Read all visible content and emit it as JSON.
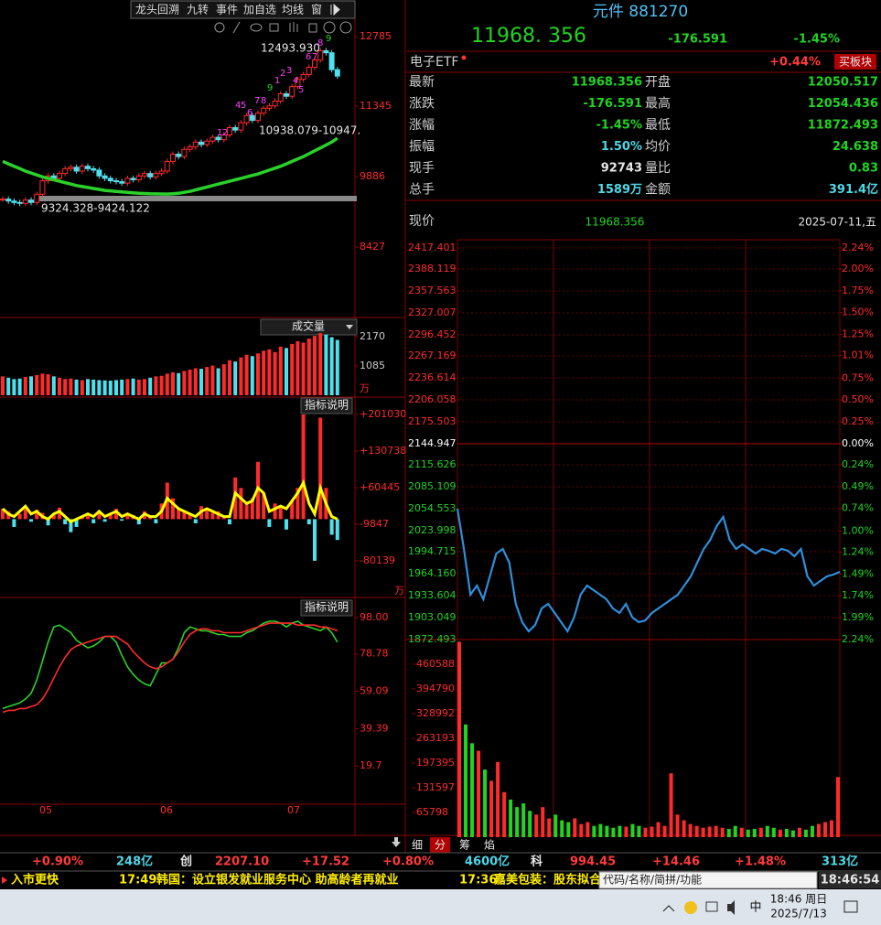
{
  "toolbar": [
    "龙头回溯",
    "九转",
    "事件",
    "加自选",
    "均线",
    "窗"
  ],
  "chart_data": [
    {
      "type": "kline",
      "values": [
        9420,
        9380,
        9350,
        9330,
        9400,
        9350,
        9520,
        9800,
        9900,
        9850,
        9950,
        10050,
        10080,
        10000,
        10100,
        10050,
        10020,
        9900,
        9850,
        9800,
        9780,
        9750,
        9850,
        9820,
        9900,
        9950,
        9880,
        9950,
        10000,
        10200,
        10350,
        10300,
        10450,
        10500,
        10600,
        10550,
        10620,
        10700,
        10650,
        10750,
        10900,
        10850,
        11000,
        11150,
        11050,
        11200,
        11300,
        11350,
        11450,
        11600,
        11550,
        11750,
        11900,
        12000,
        12150,
        12300,
        12493,
        12450,
        12100,
        11968
      ],
      "ma_values": [
        10200,
        10150,
        10100,
        10050,
        10000,
        9960,
        9920,
        9880,
        9850,
        9820,
        9790,
        9760,
        9730,
        9700,
        9680,
        9660,
        9640,
        9620,
        9600,
        9590,
        9580,
        9570,
        9560,
        9550,
        9540,
        9535,
        9530,
        9528,
        9526,
        9525,
        9530,
        9540,
        9560,
        9580,
        9610,
        9640,
        9670,
        9700,
        9730,
        9760,
        9790,
        9820,
        9850,
        9880,
        9910,
        9940,
        9980,
        10020,
        10060,
        10100,
        10150,
        10200,
        10250,
        10300,
        10360,
        10420,
        10480,
        10540,
        10600,
        10680
      ],
      "ma_color": "#2bd12b",
      "ylim": [
        7006,
        13164
      ],
      "yticks": [
        12785,
        11345,
        9886,
        8427
      ],
      "annotations": [
        "12493.930",
        "10938.079-10947.",
        "9324.328-9424.122"
      ],
      "td_labels": [
        "1",
        "2",
        "4",
        "5",
        "6",
        "7",
        "8",
        "9",
        "1",
        "2",
        "3",
        "4",
        "5",
        "6",
        "7",
        "8",
        "9"
      ],
      "x_labels": [
        "05",
        "06",
        "07"
      ]
    },
    {
      "type": "bar",
      "title": "成交量",
      "values": [
        700,
        650,
        600,
        620,
        680,
        700,
        750,
        800,
        780,
        700,
        650,
        600,
        620,
        580,
        560,
        600,
        580,
        560,
        550,
        540,
        560,
        580,
        600,
        620,
        580,
        600,
        650,
        700,
        720,
        800,
        850,
        820,
        900,
        950,
        1000,
        980,
        1050,
        1100,
        1000,
        1150,
        1300,
        1250,
        1400,
        1500,
        1450,
        1550,
        1650,
        1700,
        1600,
        1800,
        1750,
        1900,
        2000,
        1950,
        2100,
        2200,
        2300,
        2250,
        2150,
        2050
      ],
      "ylim": [
        0,
        2848
      ],
      "yticks": [
        2170,
        1085
      ],
      "unit": "万"
    },
    {
      "type": "bar_line",
      "title": "指标说明",
      "values": [
        20000,
        15000,
        -15000,
        10000,
        25000,
        -5000,
        18000,
        12000,
        -12000,
        8000,
        22000,
        -10000,
        -25000,
        -15000,
        5000,
        10000,
        -8000,
        15000,
        -5000,
        12000,
        20000,
        -3000,
        10000,
        8000,
        -10000,
        15000,
        5000,
        -8000,
        30000,
        70000,
        40000,
        20000,
        15000,
        10000,
        -8000,
        25000,
        20000,
        12000,
        15000,
        5000,
        -10000,
        80000,
        60000,
        30000,
        40000,
        110000,
        50000,
        -15000,
        30000,
        25000,
        -20000,
        35000,
        60000,
        201030,
        -10000,
        -80000,
        195000,
        60000,
        -30000,
        -40000
      ],
      "line_values": [
        20000,
        10000,
        5000,
        15000,
        25000,
        10000,
        15000,
        5000,
        0,
        10000,
        15000,
        5000,
        -5000,
        0,
        5000,
        10000,
        5000,
        15000,
        5000,
        10000,
        15000,
        5000,
        10000,
        5000,
        0,
        10000,
        5000,
        5000,
        15000,
        40000,
        30000,
        20000,
        15000,
        10000,
        5000,
        15000,
        20000,
        15000,
        10000,
        5000,
        5000,
        50000,
        40000,
        30000,
        35000,
        60000,
        50000,
        15000,
        20000,
        25000,
        20000,
        35000,
        50000,
        70000,
        30000,
        10000,
        60000,
        30000,
        5000,
        0
      ],
      "line_color": "#ffff00",
      "ylim": [
        -148674,
        232661
      ],
      "yticks": [
        {
          "value": 201030,
          "label": "+201030"
        },
        {
          "value": 130738,
          "label": "+130738"
        },
        {
          "value": 60445,
          "label": "+60445"
        },
        -9847,
        -80139
      ],
      "unit": "万"
    },
    {
      "type": "line",
      "title": "指标说明",
      "series": [
        {
          "color": "#2bd12b",
          "values": [
            50,
            51,
            52,
            53,
            55,
            58,
            65,
            75,
            85,
            93,
            94,
            92,
            90,
            86,
            84,
            82,
            83,
            85,
            88,
            88,
            85,
            78,
            72,
            68,
            65,
            63,
            62,
            68,
            74,
            74,
            76,
            82,
            90,
            93,
            92,
            91,
            91,
            90,
            89,
            89,
            88,
            88,
            88,
            90,
            91,
            93,
            95,
            96,
            96,
            95,
            93,
            95,
            96,
            94,
            93,
            92,
            91,
            93,
            90,
            85
          ]
        },
        {
          "color": "#ff2a2a",
          "values": [
            48,
            49,
            49,
            50,
            50,
            51,
            52,
            55,
            60,
            66,
            72,
            77,
            81,
            83,
            84,
            85,
            86,
            87,
            88,
            88,
            88,
            86,
            84,
            80,
            77,
            74,
            72,
            71,
            72,
            74,
            76,
            80,
            85,
            89,
            91,
            92,
            92,
            91,
            91,
            90,
            90,
            90,
            90,
            91,
            92,
            93,
            94,
            95,
            95,
            95,
            95,
            95,
            94,
            94,
            94,
            94,
            93,
            93,
            92,
            91
          ]
        }
      ],
      "ylim": [
        0,
        107.6
      ],
      "yticks": [
        {
          "value": 98,
          "label": "98.00"
        },
        78.78,
        59.09,
        39.39,
        19.7
      ]
    },
    {
      "type": "line",
      "color": "#2f8fdc",
      "values": [
        2054.5,
        1998.5,
        1934.9,
        1947.6,
        1928.5,
        1960.3,
        1992.2,
        1998.5,
        1979.4,
        1922.1,
        1896.7,
        1883.9,
        1892.8,
        1915.8,
        1922.1,
        1909.4,
        1896.7,
        1883.9,
        1903.0,
        1934.9,
        1947.6,
        1941.2,
        1934.9,
        1928.5,
        1915.8,
        1909.4,
        1922.1,
        1903.0,
        1896.7,
        1899.2,
        1909.4,
        1915.8,
        1922.1,
        1928.5,
        1934.9,
        1947.6,
        1960.3,
        1979.4,
        1998.5,
        2011.2,
        2030.3,
        2043.1,
        2011.2,
        1998.5,
        2004.9,
        1998.5,
        1992.2,
        1998.5,
        1996.0,
        1992.2,
        1998.5,
        1996.0,
        1988.3,
        1998.5,
        1960.3,
        1947.6,
        1954.0,
        1960.3,
        1962.9,
        1966.7
      ],
      "ylim": [
        1872.493,
        2417.401
      ],
      "grid": true,
      "yticks": [
        2417.401,
        2388.119,
        2357.563,
        2327.007,
        2296.452,
        2267.169,
        2236.614,
        2206.058,
        2175.503,
        2144.947,
        2115.626,
        2085.109,
        2054.553,
        2023.998,
        1994.715,
        {
          "value": 1964.16,
          "label": "1964.160"
        },
        1933.604,
        1903.049,
        1872.493
      ],
      "y2lim": [
        -2.24,
        2.24
      ],
      "y2ticks": [
        {
          "value": 2.24,
          "label": "2.24%"
        },
        {
          "value": 2.0,
          "label": "2.00%"
        },
        {
          "value": 1.75,
          "label": "1.75%"
        },
        {
          "value": 1.5,
          "label": "1.50%"
        },
        {
          "value": 1.25,
          "label": "1.25%"
        },
        {
          "value": 1.01,
          "label": "1.01%"
        },
        {
          "value": 0.75,
          "label": "0.75%"
        },
        {
          "value": 0.5,
          "label": "0.50%"
        },
        {
          "value": 0.25,
          "label": "0.25%"
        },
        {
          "value": 0,
          "label": "0.00%"
        },
        {
          "value": -0.24,
          "label": "0.24%"
        },
        {
          "value": -0.49,
          "label": "0.49%"
        },
        {
          "value": -0.74,
          "label": "0.74%"
        },
        {
          "value": -1.0,
          "label": "1.00%"
        },
        {
          "value": -1.24,
          "label": "1.24%"
        },
        {
          "value": -1.49,
          "label": "1.49%"
        },
        {
          "value": -1.74,
          "label": "1.74%"
        },
        {
          "value": -1.99,
          "label": "1.99%"
        },
        {
          "value": -2.24,
          "label": "2.24%"
        }
      ]
    },
    {
      "type": "bar",
      "values": [
        520000,
        300000,
        250000,
        230000,
        180000,
        150000,
        200000,
        120000,
        100000,
        80000,
        90000,
        70000,
        60000,
        80000,
        50000,
        60000,
        45000,
        40000,
        50000,
        35000,
        40000,
        30000,
        35000,
        30000,
        25000,
        30000,
        28000,
        35000,
        30000,
        25000,
        28000,
        40000,
        30000,
        170000,
        60000,
        45000,
        35000,
        30000,
        25000,
        28000,
        30000,
        25000,
        22000,
        30000,
        25000,
        20000,
        22000,
        25000,
        30000,
        25000,
        20000,
        22000,
        18000,
        25000,
        20000,
        30000,
        35000,
        40000,
        45000,
        160000
      ],
      "ylim": [
        0,
        526000
      ],
      "yticks": [
        460588,
        394790,
        328992,
        263193,
        197395,
        131597,
        65798
      ]
    }
  ],
  "quote": {
    "title": "元件 881270",
    "price": "11968. 356",
    "change": "-176.591",
    "pct": "-1.45%",
    "sector": "电子ETF",
    "sector_pct": "+0.44%",
    "button": "买板块",
    "rows": [
      [
        "最新",
        "11968.356",
        "开盘",
        "12050.517"
      ],
      [
        "涨跌",
        "-176.591",
        "最高",
        "12054.436"
      ],
      [
        "涨幅",
        "-1.45%",
        "最低",
        "11872.493"
      ],
      [
        "振幅",
        "1.50%",
        "均价",
        "24.638"
      ],
      [
        "现手",
        "92743",
        "量比",
        "0.83"
      ],
      [
        "总手",
        "1589万",
        "金额",
        "391.4亿"
      ]
    ],
    "now_label": "现价",
    "now_value": "11968.356",
    "date": "2025-07-11,五"
  },
  "tabs": [
    "细",
    "分",
    "筹",
    "焰"
  ],
  "index_bar": [
    "+0.90%",
    "248亿",
    "创",
    "2207.10",
    "+17.52",
    "+0.80%",
    "4600亿",
    "科",
    "994.45",
    "+14.46",
    "+1.48%",
    "313亿"
  ],
  "news": [
    "入市更快",
    "17:49",
    "韩国：设立银发就业服务中心 助高龄者再就业",
    "17:36",
    "嘉美包装：股东拟合计减"
  ],
  "search_placeholder": "代码/名称/简拼/功能",
  "clock": "18:46:54",
  "taskbar": {
    "ime": "中",
    "time": "18:46 周日",
    "date": "2025/7/13"
  }
}
